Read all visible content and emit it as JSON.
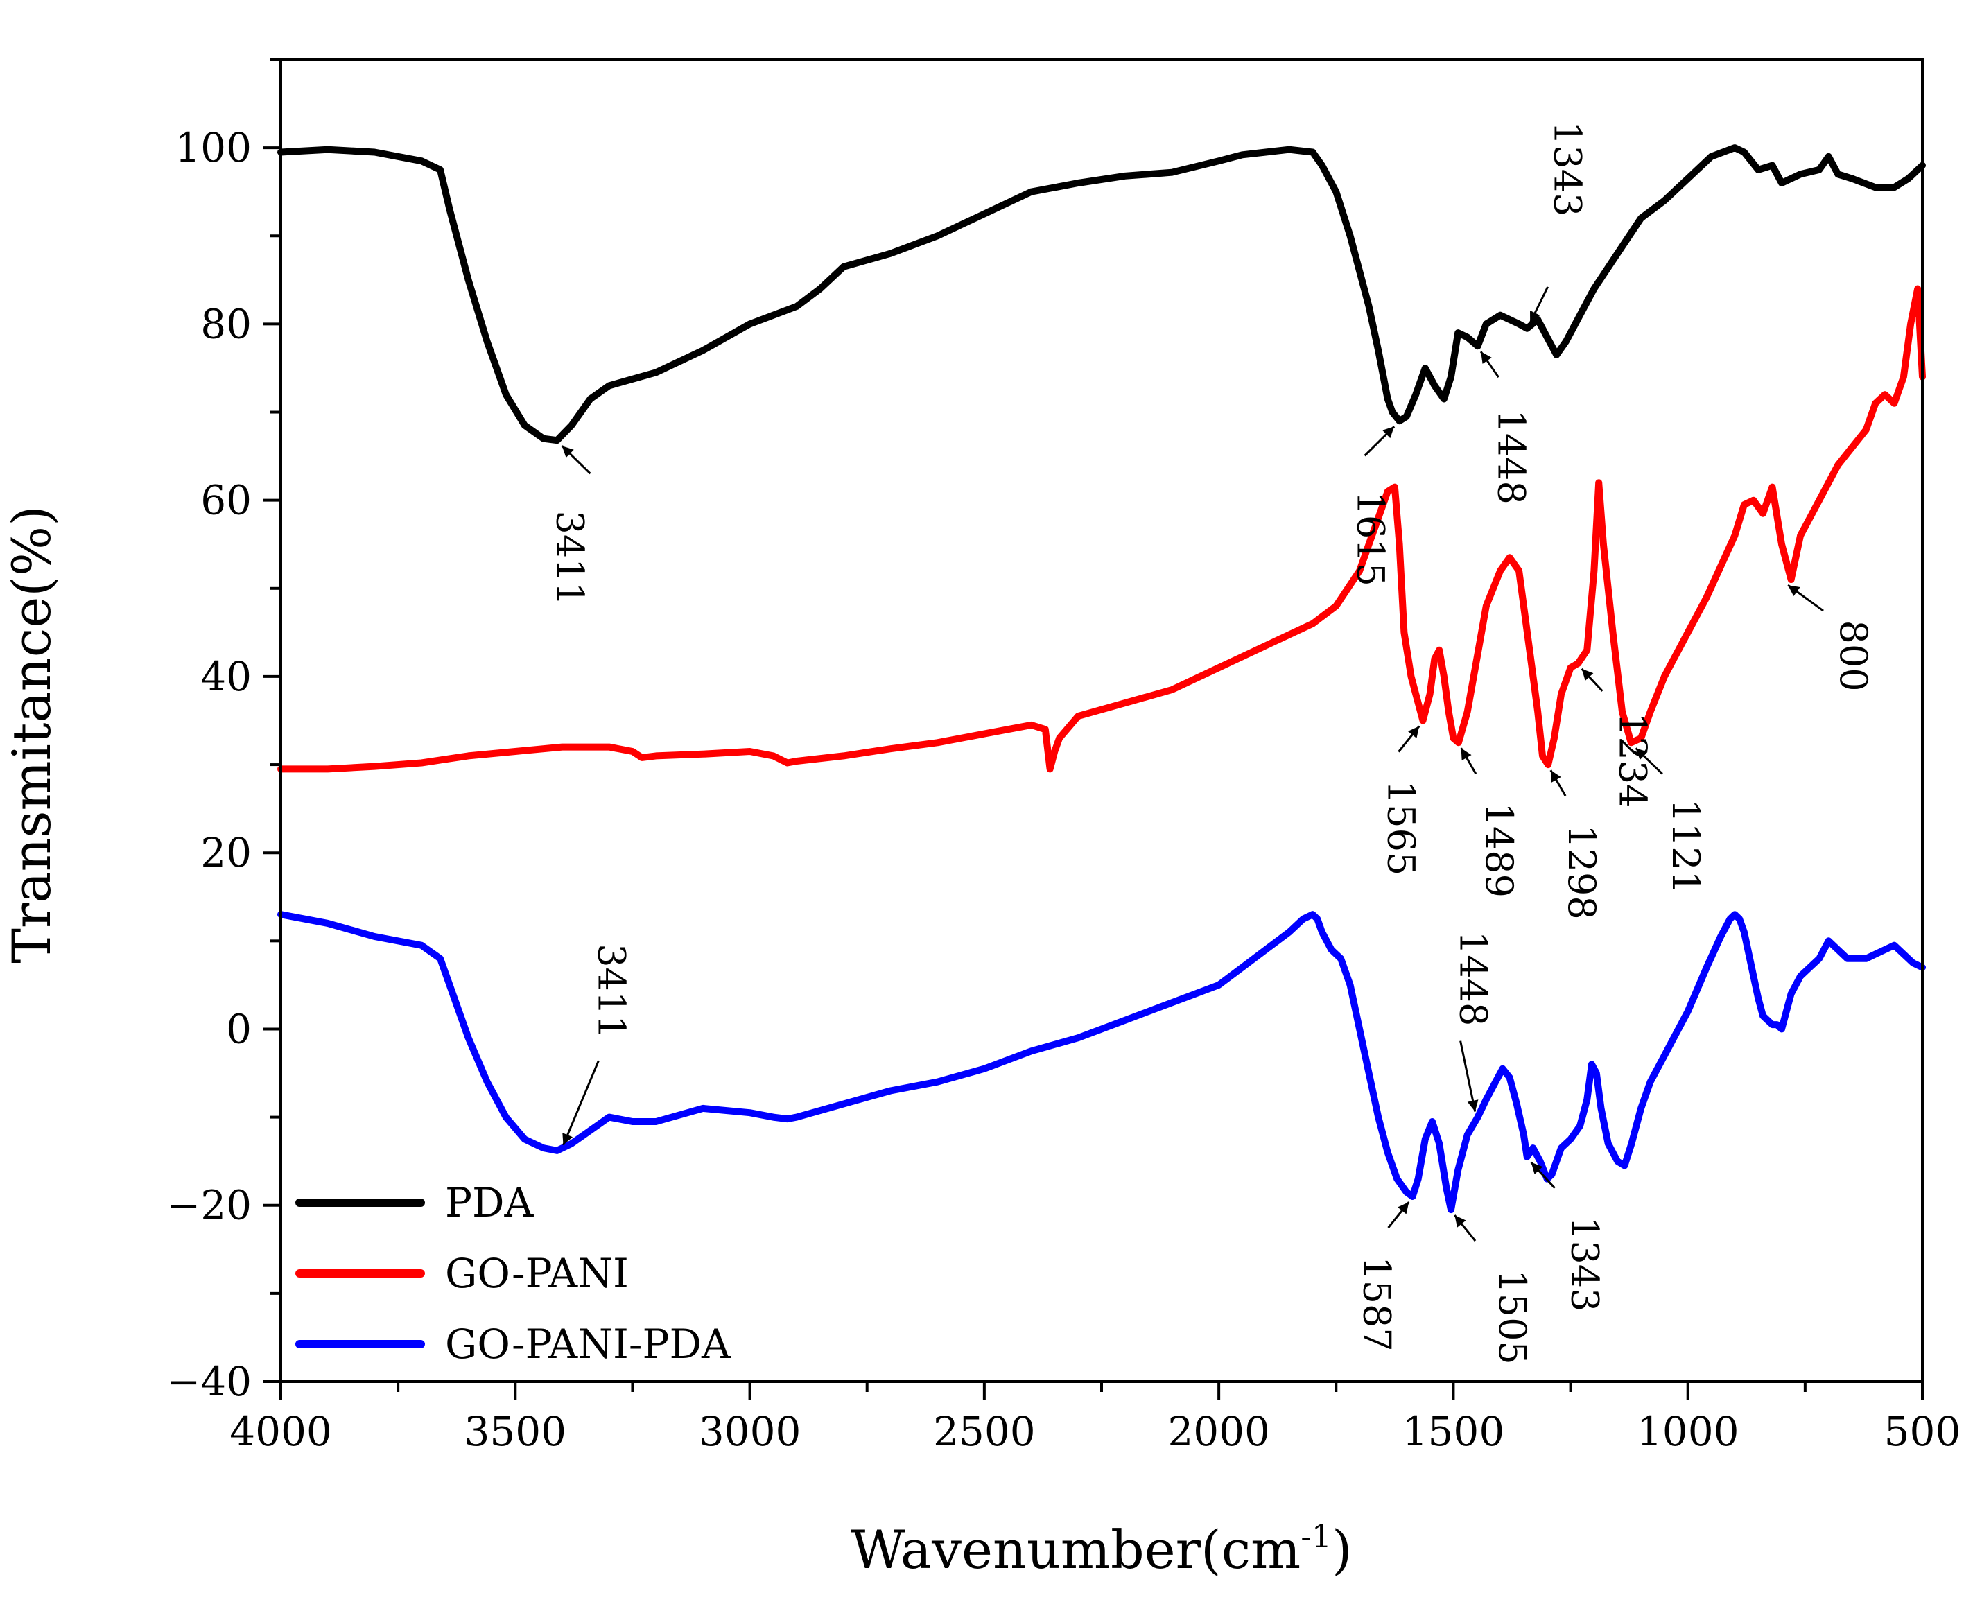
{
  "chart_data": {
    "type": "line",
    "title": "",
    "xlabel": "Wavenumber",
    "xlabel_unit": "(cm",
    "xlabel_sup": "-1",
    "xlabel_close": ")",
    "ylabel": "Transmitance(%)",
    "xlim": [
      4000,
      500
    ],
    "ylim": [
      -40,
      110
    ],
    "x_ticks": [
      4000,
      3500,
      3000,
      2500,
      2000,
      1500,
      1000,
      500
    ],
    "y_ticks": [
      -40,
      -20,
      0,
      20,
      40,
      60,
      80,
      100
    ],
    "legend_position": "bottom-left",
    "series": [
      {
        "name": "PDA",
        "color": "#000000",
        "x": [
          4000,
          3900,
          3800,
          3700,
          3660,
          3640,
          3600,
          3560,
          3520,
          3480,
          3440,
          3411,
          3380,
          3340,
          3300,
          3200,
          3100,
          3000,
          2950,
          2900,
          2850,
          2800,
          2700,
          2600,
          2500,
          2400,
          2300,
          2200,
          2100,
          2000,
          1950,
          1900,
          1850,
          1800,
          1780,
          1750,
          1720,
          1700,
          1680,
          1660,
          1640,
          1630,
          1615,
          1600,
          1580,
          1560,
          1540,
          1520,
          1505,
          1490,
          1470,
          1448,
          1430,
          1400,
          1380,
          1360,
          1343,
          1320,
          1300,
          1280,
          1260,
          1240,
          1200,
          1150,
          1100,
          1050,
          1000,
          950,
          900,
          880,
          850,
          820,
          800,
          760,
          720,
          700,
          680,
          650,
          600,
          560,
          530,
          500
        ],
        "y": [
          99.5,
          99.8,
          99.5,
          98.5,
          97.5,
          93,
          85,
          78,
          72,
          68.5,
          67,
          66.8,
          68.5,
          71.5,
          73,
          74.5,
          77,
          80,
          81,
          82,
          84,
          86.5,
          88,
          90,
          92.5,
          95,
          96,
          96.8,
          97.2,
          98.5,
          99.2,
          99.5,
          99.8,
          99.5,
          98,
          95,
          90,
          86,
          82,
          77,
          71.5,
          70,
          69,
          69.5,
          72,
          75,
          73,
          71.5,
          74,
          79,
          78.5,
          77.5,
          80,
          81,
          80.5,
          80,
          79.5,
          80.5,
          78.5,
          76.5,
          78,
          80,
          84,
          88,
          92,
          94,
          96.5,
          99,
          100,
          99.5,
          97.5,
          98,
          96,
          97,
          97.5,
          99,
          97,
          96.5,
          95.5,
          95.5,
          96.5,
          98
        ]
      },
      {
        "name": "GO-PANI",
        "color": "#ff0000",
        "x": [
          4000,
          3900,
          3800,
          3700,
          3600,
          3500,
          3400,
          3300,
          3250,
          3230,
          3200,
          3100,
          3000,
          2950,
          2920,
          2900,
          2800,
          2700,
          2600,
          2500,
          2400,
          2370,
          2360,
          2350,
          2340,
          2300,
          2200,
          2100,
          2000,
          1900,
          1800,
          1750,
          1700,
          1680,
          1660,
          1640,
          1625,
          1615,
          1605,
          1590,
          1580,
          1565,
          1550,
          1540,
          1530,
          1520,
          1510,
          1500,
          1489,
          1470,
          1450,
          1430,
          1400,
          1380,
          1360,
          1340,
          1320,
          1310,
          1298,
          1285,
          1270,
          1250,
          1234,
          1215,
          1200,
          1190,
          1180,
          1160,
          1140,
          1121,
          1100,
          1080,
          1050,
          1000,
          960,
          900,
          880,
          860,
          840,
          820,
          800,
          780,
          760,
          720,
          680,
          650,
          620,
          600,
          580,
          560,
          540,
          525,
          510,
          500
        ],
        "y": [
          29.5,
          29.5,
          29.8,
          30.2,
          31,
          31.5,
          32,
          32,
          31.5,
          30.8,
          31,
          31.2,
          31.5,
          31,
          30.2,
          30.4,
          31,
          31.8,
          32.5,
          33.5,
          34.5,
          34,
          29.5,
          31.5,
          33,
          35.5,
          37,
          38.5,
          41,
          43.5,
          46,
          48,
          52,
          55,
          58,
          61,
          61.5,
          55,
          45,
          40,
          38,
          35,
          38,
          42,
          43,
          40,
          36,
          33,
          32.5,
          36,
          42,
          48,
          52,
          53.5,
          52,
          44,
          36,
          31,
          30,
          33,
          38,
          41,
          41.5,
          43,
          52,
          62,
          55,
          45,
          36,
          32.5,
          33,
          36,
          40,
          45,
          49,
          56,
          59.5,
          60,
          58.5,
          61.5,
          55,
          51,
          56,
          60,
          64,
          66,
          68,
          71,
          72,
          71,
          74,
          80,
          84,
          74
        ]
      },
      {
        "name": "GO-PANI-PDA",
        "color": "#0000ff",
        "x": [
          4000,
          3900,
          3800,
          3700,
          3660,
          3640,
          3600,
          3560,
          3520,
          3480,
          3440,
          3411,
          3380,
          3340,
          3300,
          3250,
          3200,
          3100,
          3000,
          2950,
          2920,
          2900,
          2800,
          2700,
          2600,
          2500,
          2400,
          2300,
          2200,
          2100,
          2000,
          1950,
          1900,
          1850,
          1820,
          1800,
          1790,
          1780,
          1760,
          1740,
          1720,
          1700,
          1680,
          1660,
          1640,
          1620,
          1600,
          1587,
          1575,
          1560,
          1545,
          1530,
          1515,
          1505,
          1490,
          1470,
          1448,
          1430,
          1410,
          1395,
          1380,
          1365,
          1350,
          1343,
          1330,
          1315,
          1300,
          1290,
          1270,
          1250,
          1230,
          1215,
          1205,
          1195,
          1185,
          1170,
          1150,
          1135,
          1120,
          1100,
          1080,
          1050,
          1000,
          960,
          930,
          910,
          900,
          890,
          880,
          870,
          860,
          850,
          840,
          830,
          820,
          810,
          800,
          790,
          780,
          760,
          740,
          720,
          700,
          680,
          660,
          640,
          620,
          600,
          580,
          560,
          540,
          520,
          500
        ],
        "y": [
          13,
          12,
          10.5,
          9.5,
          8,
          5,
          -1,
          -6,
          -10,
          -12.5,
          -13.5,
          -13.8,
          -13,
          -11.5,
          -10,
          -10.5,
          -10.5,
          -9,
          -9.5,
          -10,
          -10.2,
          -10,
          -8.5,
          -7,
          -6,
          -4.5,
          -2.5,
          -1,
          1,
          3,
          5,
          7,
          9,
          11,
          12.5,
          13,
          12.5,
          11,
          9,
          8,
          5,
          0,
          -5,
          -10,
          -14,
          -17,
          -18.5,
          -19,
          -17,
          -12.5,
          -10.5,
          -13,
          -18,
          -20.5,
          -16,
          -12,
          -10,
          -8,
          -6,
          -4.5,
          -5.5,
          -8.5,
          -12,
          -14.5,
          -13.5,
          -15,
          -17,
          -16.5,
          -13.5,
          -12.5,
          -11,
          -8,
          -4,
          -5,
          -9,
          -13,
          -15,
          -15.5,
          -13,
          -9,
          -6,
          -3,
          2,
          7,
          10.5,
          12.5,
          13,
          12.5,
          11,
          8.5,
          6,
          3.5,
          1.5,
          1,
          0.5,
          0.5,
          0,
          2,
          4,
          6,
          7,
          8,
          10,
          9,
          8,
          8,
          8,
          8.5,
          9,
          9.5,
          8.5,
          7.5,
          7
        ]
      }
    ],
    "annotations": [
      {
        "text": "3411",
        "series": "PDA",
        "x": 3411,
        "y": 66.8
      },
      {
        "text": "1615",
        "series": "PDA",
        "x": 1615,
        "y": 69
      },
      {
        "text": "1448",
        "series": "PDA",
        "x": 1448,
        "y": 77.5
      },
      {
        "text": "1343",
        "series": "PDA",
        "x": 1343,
        "y": 79.5
      },
      {
        "text": "1565",
        "series": "GO-PANI",
        "x": 1565,
        "y": 35
      },
      {
        "text": "1489",
        "series": "GO-PANI",
        "x": 1489,
        "y": 32.5
      },
      {
        "text": "1298",
        "series": "GO-PANI",
        "x": 1298,
        "y": 30
      },
      {
        "text": "1234",
        "series": "GO-PANI",
        "x": 1234,
        "y": 41.5
      },
      {
        "text": "1121",
        "series": "GO-PANI",
        "x": 1121,
        "y": 32.5
      },
      {
        "text": "800",
        "series": "GO-PANI",
        "x": 800,
        "y": 51
      },
      {
        "text": "3411",
        "series": "GO-PANI-PDA",
        "x": 3411,
        "y": -13.8
      },
      {
        "text": "1448",
        "series": "GO-PANI-PDA",
        "x": 1448,
        "y": -10
      },
      {
        "text": "1587",
        "series": "GO-PANI-PDA",
        "x": 1587,
        "y": -19
      },
      {
        "text": "1505",
        "series": "GO-PANI-PDA",
        "x": 1505,
        "y": -20.5
      },
      {
        "text": "1343",
        "series": "GO-PANI-PDA",
        "x": 1343,
        "y": -14.5
      }
    ]
  }
}
